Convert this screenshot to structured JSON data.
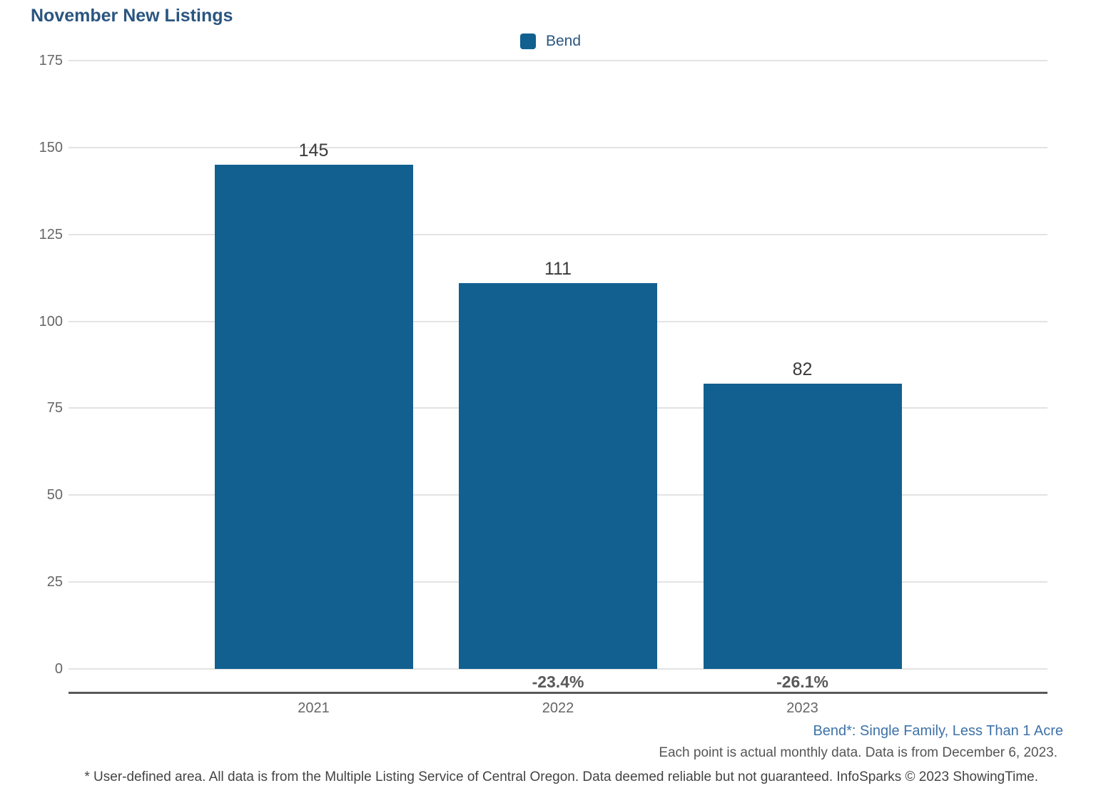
{
  "header": {
    "title": "November New Listings"
  },
  "legend": {
    "position": "top-center",
    "items": [
      {
        "label": "Bend",
        "color": "#116090"
      }
    ]
  },
  "chart_data": {
    "type": "bar",
    "title": "November New Listings",
    "categories": [
      "2021",
      "2022",
      "2023"
    ],
    "series": [
      {
        "name": "Bend",
        "color": "#116090",
        "values": [
          145,
          111,
          82
        ]
      }
    ],
    "data_labels": [
      "145",
      "111",
      "82"
    ],
    "change_labels": [
      "",
      "-23.4%",
      "-26.1%"
    ],
    "ylim": [
      0,
      175
    ],
    "yticks": [
      0,
      25,
      50,
      75,
      100,
      125,
      150,
      175
    ],
    "xlabel": "",
    "ylabel": "",
    "grid": "horizontal-only",
    "legend_position": "top-center",
    "colors": {
      "bar": "#116090",
      "gridline": "#e3e3e3",
      "axis_line": "#595959",
      "tick_label": "#666666",
      "value_label": "#3a3a3a",
      "change_label": "#595959",
      "title": "#2a5580",
      "series_note": "#3e72a8"
    }
  },
  "footnotes": {
    "series_definition": "Bend*: Single Family, Less Than 1 Acre",
    "data_source_note": "Each point is actual monthly data. Data is from December 6, 2023.",
    "disclaimer": "* User-defined area. All data is from the Multiple Listing Service of Central Oregon. Data deemed reliable but not guaranteed. InfoSparks © 2023 ShowingTime."
  }
}
